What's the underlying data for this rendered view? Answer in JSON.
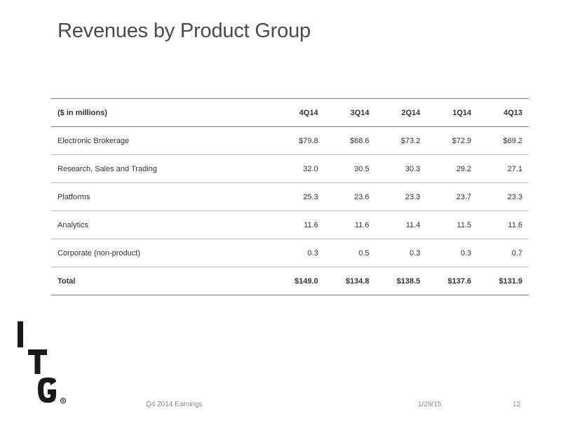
{
  "title": "Revenues by Product Group",
  "table": {
    "header": [
      "($ in millions)",
      "4Q14",
      "3Q14",
      "2Q14",
      "1Q14",
      "4Q13"
    ],
    "rows": [
      {
        "label": "Electronic Brokerage",
        "values": [
          "$79.8",
          "$68.6",
          "$73.2",
          "$72.9",
          "$69.2"
        ]
      },
      {
        "label": "Research, Sales and Trading",
        "values": [
          "32.0",
          "30.5",
          "30.3",
          "29.2",
          "27.1"
        ]
      },
      {
        "label": "Platforms",
        "values": [
          "25.3",
          "23.6",
          "23.3",
          "23.7",
          "23.3"
        ]
      },
      {
        "label": "Analytics",
        "values": [
          "11.6",
          "11.6",
          "11.4",
          "11.5",
          "11.6"
        ]
      },
      {
        "label": "Corporate (non-product)",
        "values": [
          "0.3",
          "0.5",
          "0.3",
          "0.3",
          "0.7"
        ]
      }
    ],
    "total": {
      "label": "Total",
      "values": [
        "$149.0",
        "$134.8",
        "$138.5",
        "$137.6",
        "$131.9"
      ]
    }
  },
  "logo": {
    "letters": [
      "I",
      "T",
      "G"
    ],
    "mark": "®",
    "color": "#1a1a1a"
  },
  "footer": {
    "left": "Q4 2014 Earnings",
    "date": "1/29/15",
    "page": "12"
  }
}
